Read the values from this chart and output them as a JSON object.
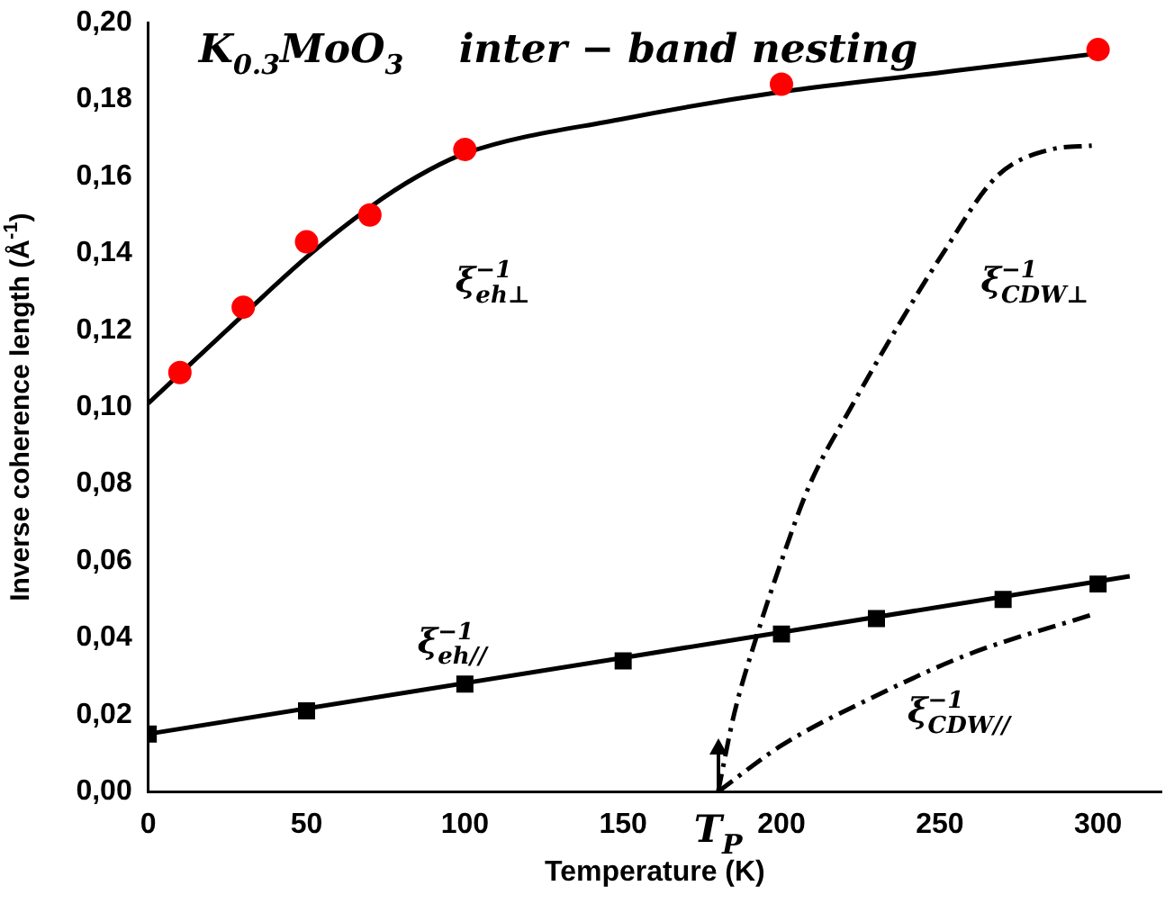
{
  "chart_data": {
    "type": "scatter",
    "title": "K$_{0.3}$MoO$_{3}$    inter − band nesting",
    "xlabel": "Temperature (K)",
    "ylabel": "Inverse coherence length (Å$^{-1}$)",
    "xlim": [
      0,
      320
    ],
    "xticks": [
      0,
      50,
      100,
      150,
      200,
      250,
      300
    ],
    "ylim": [
      0,
      0.2
    ],
    "yticks": [
      {
        "value": 0,
        "label": "0,00"
      },
      {
        "value": 0.02,
        "label": "0,02"
      },
      {
        "value": 0.04,
        "label": "0,04"
      },
      {
        "value": 0.06,
        "label": "0,06"
      },
      {
        "value": 0.08,
        "label": "0,08"
      },
      {
        "value": 0.1,
        "label": "0,10"
      },
      {
        "value": 0.12,
        "label": "0,12"
      },
      {
        "value": 0.14,
        "label": "0,14"
      },
      {
        "value": 0.16,
        "label": "0,16"
      },
      {
        "value": 0.18,
        "label": "0,18"
      },
      {
        "value": 0.2,
        "label": "0,20"
      }
    ],
    "grid": false,
    "legend": false,
    "series": [
      {
        "marker": "circle",
        "color": "#ff0000",
        "x": [
          10,
          30,
          50,
          70,
          100,
          200,
          300
        ],
        "values": [
          0.109,
          0.126,
          0.143,
          0.15,
          0.167,
          0.184,
          0.193
        ]
      },
      {
        "marker": "square",
        "color": "#000000",
        "x": [
          0,
          50,
          100,
          150,
          200,
          230,
          270,
          300
        ],
        "values": [
          0.015,
          0.021,
          0.028,
          0.034,
          0.041,
          0.045,
          0.05,
          0.054
        ]
      },
      {
        "type": "line",
        "line_style": "solid",
        "color": "#000000",
        "x": [
          0,
          30,
          50,
          70,
          85,
          100,
          150,
          200,
          250,
          300
        ],
        "values": [
          0.101,
          0.124,
          0.139,
          0.152,
          0.16,
          0.166,
          0.175,
          0.182,
          0.187,
          0.192
        ]
      },
      {
        "type": "line",
        "line_style": "solid",
        "color": "#000000",
        "x": [
          0,
          310
        ],
        "values": [
          0.015,
          0.056
        ]
      },
      {
        "type": "line",
        "line_style": "dashed",
        "color": "#000000",
        "x": [
          180,
          185,
          192,
          200,
          209,
          222,
          236,
          251,
          268,
          285,
          298
        ],
        "values": [
          0,
          0.02,
          0.04,
          0.06,
          0.08,
          0.1,
          0.12,
          0.14,
          0.16,
          0.167,
          0.168
        ]
      },
      {
        "type": "line",
        "line_style": "dashed",
        "color": "#000000",
        "x": [
          180,
          200,
          230,
          260,
          298
        ],
        "values": [
          0,
          0.012,
          0.025,
          0.036,
          0.046
        ]
      }
    ],
    "annotations": [
      "ξ$^{−1}$$_{eh⊥}$",
      "ξ$^{−1}$$_{CDW⊥}$",
      "ξ$^{−1}$$_{eh//}$",
      "ξ$^{−1}$$_{CDW//}$",
      {
        "text": "T$_{P}$",
        "x": 180,
        "y": 0
      }
    ]
  }
}
